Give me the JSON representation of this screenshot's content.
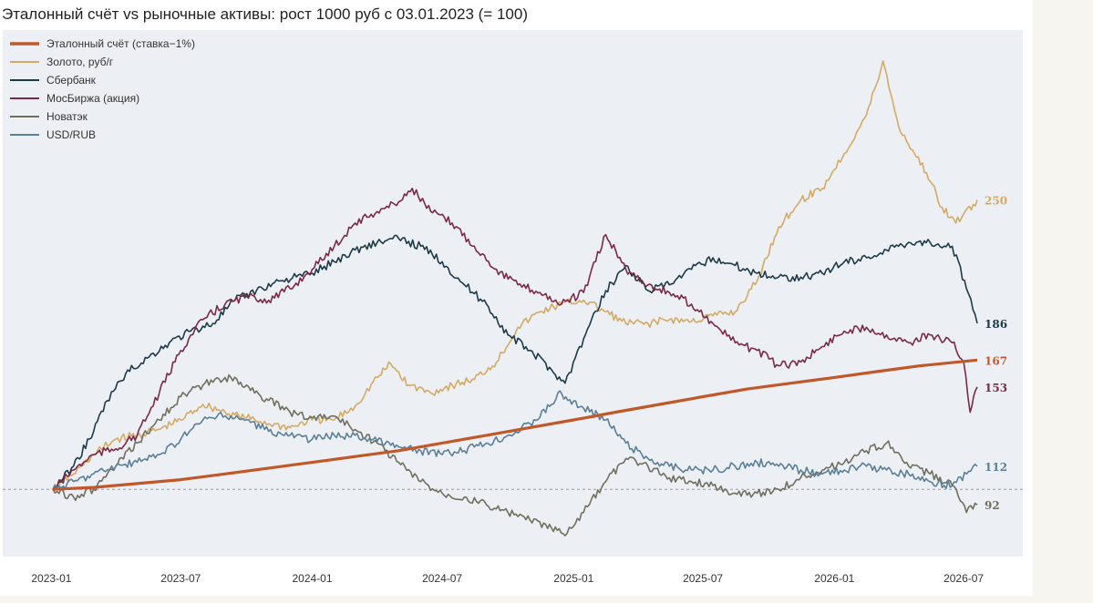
{
  "chart_data": {
    "type": "line",
    "title": "Эталонный счёт vs рыночные активы: рост 1000 руб с 03.01.2023 (= 100)",
    "xlabel": "",
    "ylabel": "",
    "x_range": [
      "2023-01-03",
      "2026-07-20"
    ],
    "x_ticks": [
      "2023-01",
      "2023-07",
      "2024-01",
      "2024-07",
      "2025-01",
      "2025-07",
      "2026-01",
      "2026-07"
    ],
    "ylim": [
      68,
      330
    ],
    "reference_line": 100,
    "grid": false,
    "legend_position": "top-left",
    "series": [
      {
        "name": "Эталонный счёт (ставка−1%)",
        "color": "#c0582a",
        "end_label": "167",
        "points": [
          [
            "2023-01-03",
            100
          ],
          [
            "2023-03-01",
            101
          ],
          [
            "2023-05-01",
            103
          ],
          [
            "2023-07-01",
            105
          ],
          [
            "2023-09-01",
            108
          ],
          [
            "2023-11-01",
            111
          ],
          [
            "2024-01-01",
            114
          ],
          [
            "2024-03-01",
            117
          ],
          [
            "2024-05-01",
            120
          ],
          [
            "2024-07-01",
            124
          ],
          [
            "2024-09-01",
            128
          ],
          [
            "2024-11-01",
            132
          ],
          [
            "2025-01-01",
            136
          ],
          [
            "2025-03-01",
            140
          ],
          [
            "2025-05-01",
            144
          ],
          [
            "2025-07-01",
            148
          ],
          [
            "2025-09-01",
            152
          ],
          [
            "2025-11-01",
            155
          ],
          [
            "2026-01-01",
            158
          ],
          [
            "2026-03-01",
            161
          ],
          [
            "2026-05-01",
            164
          ],
          [
            "2026-07-20",
            167
          ]
        ]
      },
      {
        "name": "Золото, руб/г",
        "color": "#d4aa64",
        "end_label": "250",
        "points": [
          [
            "2023-01-03",
            100
          ],
          [
            "2023-02-01",
            108
          ],
          [
            "2023-03-01",
            118
          ],
          [
            "2023-04-01",
            126
          ],
          [
            "2023-05-01",
            128
          ],
          [
            "2023-06-01",
            131
          ],
          [
            "2023-07-01",
            136
          ],
          [
            "2023-08-01",
            144
          ],
          [
            "2023-09-01",
            140
          ],
          [
            "2023-10-01",
            137
          ],
          [
            "2023-11-01",
            134
          ],
          [
            "2023-12-01",
            132
          ],
          [
            "2024-01-01",
            136
          ],
          [
            "2024-02-01",
            136
          ],
          [
            "2024-03-01",
            143
          ],
          [
            "2024-04-01",
            158
          ],
          [
            "2024-04-20",
            165
          ],
          [
            "2024-05-15",
            154
          ],
          [
            "2024-06-15",
            150
          ],
          [
            "2024-07-15",
            154
          ],
          [
            "2024-08-15",
            157
          ],
          [
            "2024-09-15",
            166
          ],
          [
            "2024-10-15",
            184
          ],
          [
            "2024-11-15",
            192
          ],
          [
            "2024-12-15",
            196
          ],
          [
            "2025-01-15",
            198
          ],
          [
            "2025-02-15",
            192
          ],
          [
            "2025-03-15",
            186
          ],
          [
            "2025-04-15",
            186
          ],
          [
            "2025-05-15",
            188
          ],
          [
            "2025-06-15",
            187
          ],
          [
            "2025-07-15",
            190
          ],
          [
            "2025-08-15",
            192
          ],
          [
            "2025-09-15",
            208
          ],
          [
            "2025-10-15",
            236
          ],
          [
            "2025-11-15",
            250
          ],
          [
            "2025-12-15",
            256
          ],
          [
            "2026-01-15",
            274
          ],
          [
            "2026-02-15",
            294
          ],
          [
            "2026-03-01",
            310
          ],
          [
            "2026-03-10",
            322
          ],
          [
            "2026-04-01",
            288
          ],
          [
            "2026-04-20",
            276
          ],
          [
            "2026-05-10",
            264
          ],
          [
            "2026-06-01",
            246
          ],
          [
            "2026-06-20",
            238
          ],
          [
            "2026-07-20",
            250
          ]
        ]
      },
      {
        "name": "Сбербанк",
        "color": "#1e3a47",
        "end_label": "186",
        "points": [
          [
            "2023-01-03",
            100
          ],
          [
            "2023-02-01",
            112
          ],
          [
            "2023-03-01",
            130
          ],
          [
            "2023-03-20",
            146
          ],
          [
            "2023-04-15",
            160
          ],
          [
            "2023-05-15",
            168
          ],
          [
            "2023-06-15",
            176
          ],
          [
            "2023-07-15",
            182
          ],
          [
            "2023-08-15",
            186
          ],
          [
            "2023-09-15",
            198
          ],
          [
            "2023-10-15",
            203
          ],
          [
            "2023-11-15",
            208
          ],
          [
            "2024-01-01",
            212
          ],
          [
            "2024-02-01",
            218
          ],
          [
            "2024-03-01",
            224
          ],
          [
            "2024-04-01",
            228
          ],
          [
            "2024-05-01",
            230
          ],
          [
            "2024-06-01",
            226
          ],
          [
            "2024-07-01",
            218
          ],
          [
            "2024-08-01",
            206
          ],
          [
            "2024-09-01",
            196
          ],
          [
            "2024-10-01",
            180
          ],
          [
            "2024-11-01",
            172
          ],
          [
            "2024-12-01",
            162
          ],
          [
            "2024-12-20",
            155
          ],
          [
            "2025-01-15",
            178
          ],
          [
            "2025-02-15",
            203
          ],
          [
            "2025-03-15",
            216
          ],
          [
            "2025-04-15",
            203
          ],
          [
            "2025-05-15",
            206
          ],
          [
            "2025-06-15",
            214
          ],
          [
            "2025-07-15",
            220
          ],
          [
            "2025-08-15",
            216
          ],
          [
            "2025-09-15",
            212
          ],
          [
            "2025-10-15",
            210
          ],
          [
            "2025-11-15",
            210
          ],
          [
            "2025-12-15",
            212
          ],
          [
            "2026-01-15",
            218
          ],
          [
            "2026-02-15",
            220
          ],
          [
            "2026-03-15",
            224
          ],
          [
            "2026-04-15",
            228
          ],
          [
            "2026-05-15",
            228
          ],
          [
            "2026-06-15",
            226
          ],
          [
            "2026-07-05",
            204
          ],
          [
            "2026-07-20",
            186
          ]
        ]
      },
      {
        "name": "МосБиржа (акция)",
        "color": "#7a2a45",
        "end_label": "153",
        "points": [
          [
            "2023-01-03",
            100
          ],
          [
            "2023-02-01",
            110
          ],
          [
            "2023-03-01",
            118
          ],
          [
            "2023-04-01",
            121
          ],
          [
            "2023-05-01",
            128
          ],
          [
            "2023-06-01",
            150
          ],
          [
            "2023-07-01",
            172
          ],
          [
            "2023-08-01",
            188
          ],
          [
            "2023-09-01",
            196
          ],
          [
            "2023-10-01",
            200
          ],
          [
            "2023-11-01",
            198
          ],
          [
            "2023-12-01",
            204
          ],
          [
            "2024-01-01",
            214
          ],
          [
            "2024-02-01",
            226
          ],
          [
            "2024-03-01",
            238
          ],
          [
            "2024-04-01",
            244
          ],
          [
            "2024-05-01",
            249
          ],
          [
            "2024-05-20",
            256
          ],
          [
            "2024-06-15",
            244
          ],
          [
            "2024-07-15",
            238
          ],
          [
            "2024-08-15",
            226
          ],
          [
            "2024-09-15",
            214
          ],
          [
            "2024-10-15",
            206
          ],
          [
            "2024-11-15",
            202
          ],
          [
            "2024-12-15",
            196
          ],
          [
            "2025-01-15",
            202
          ],
          [
            "2025-02-15",
            232
          ],
          [
            "2025-03-15",
            214
          ],
          [
            "2025-04-15",
            206
          ],
          [
            "2025-05-15",
            202
          ],
          [
            "2025-06-15",
            196
          ],
          [
            "2025-07-15",
            186
          ],
          [
            "2025-08-15",
            176
          ],
          [
            "2025-09-15",
            172
          ],
          [
            "2025-10-15",
            164
          ],
          [
            "2025-11-15",
            166
          ],
          [
            "2025-12-15",
            174
          ],
          [
            "2026-01-15",
            182
          ],
          [
            "2026-02-15",
            184
          ],
          [
            "2026-03-15",
            180
          ],
          [
            "2026-04-15",
            176
          ],
          [
            "2026-05-15",
            180
          ],
          [
            "2026-06-15",
            176
          ],
          [
            "2026-07-01",
            166
          ],
          [
            "2026-07-10",
            140
          ],
          [
            "2026-07-20",
            153
          ]
        ]
      },
      {
        "name": "Новатэк",
        "color": "#6f6f5e",
        "end_label": "92",
        "points": [
          [
            "2023-01-03",
            100
          ],
          [
            "2023-02-01",
            96
          ],
          [
            "2023-03-01",
            100
          ],
          [
            "2023-04-01",
            112
          ],
          [
            "2023-05-01",
            124
          ],
          [
            "2023-06-01",
            136
          ],
          [
            "2023-07-01",
            148
          ],
          [
            "2023-08-01",
            154
          ],
          [
            "2023-09-01",
            158
          ],
          [
            "2023-10-01",
            154
          ],
          [
            "2023-11-01",
            146
          ],
          [
            "2023-12-01",
            140
          ],
          [
            "2024-01-01",
            137
          ],
          [
            "2024-02-01",
            138
          ],
          [
            "2024-03-01",
            131
          ],
          [
            "2024-04-01",
            124
          ],
          [
            "2024-05-01",
            114
          ],
          [
            "2024-06-01",
            104
          ],
          [
            "2024-07-01",
            98
          ],
          [
            "2024-08-01",
            96
          ],
          [
            "2024-09-01",
            92
          ],
          [
            "2024-10-01",
            88
          ],
          [
            "2024-11-01",
            84
          ],
          [
            "2024-12-01",
            80
          ],
          [
            "2024-12-20",
            76
          ],
          [
            "2025-01-15",
            88
          ],
          [
            "2025-02-15",
            104
          ],
          [
            "2025-03-15",
            116
          ],
          [
            "2025-04-15",
            112
          ],
          [
            "2025-05-15",
            106
          ],
          [
            "2025-06-15",
            104
          ],
          [
            "2025-07-15",
            102
          ],
          [
            "2025-08-15",
            98
          ],
          [
            "2025-09-15",
            98
          ],
          [
            "2025-10-15",
            100
          ],
          [
            "2025-11-15",
            106
          ],
          [
            "2025-12-15",
            110
          ],
          [
            "2026-01-15",
            114
          ],
          [
            "2026-02-15",
            120
          ],
          [
            "2026-03-15",
            124
          ],
          [
            "2026-04-15",
            112
          ],
          [
            "2026-05-15",
            108
          ],
          [
            "2026-06-15",
            102
          ],
          [
            "2026-07-05",
            88
          ],
          [
            "2026-07-20",
            92
          ]
        ]
      },
      {
        "name": "USD/RUB",
        "color": "#5b7f95",
        "end_label": "112",
        "points": [
          [
            "2023-01-03",
            100
          ],
          [
            "2023-02-01",
            104
          ],
          [
            "2023-03-01",
            108
          ],
          [
            "2023-04-01",
            112
          ],
          [
            "2023-05-01",
            114
          ],
          [
            "2023-06-01",
            118
          ],
          [
            "2023-07-01",
            126
          ],
          [
            "2023-08-01",
            136
          ],
          [
            "2023-09-01",
            138
          ],
          [
            "2023-10-01",
            136
          ],
          [
            "2023-11-01",
            130
          ],
          [
            "2023-12-01",
            128
          ],
          [
            "2024-01-01",
            126
          ],
          [
            "2024-02-01",
            128
          ],
          [
            "2024-03-01",
            128
          ],
          [
            "2024-04-01",
            125
          ],
          [
            "2024-05-01",
            122
          ],
          [
            "2024-06-01",
            120
          ],
          [
            "2024-07-01",
            118
          ],
          [
            "2024-08-01",
            120
          ],
          [
            "2024-09-01",
            124
          ],
          [
            "2024-10-01",
            128
          ],
          [
            "2024-11-01",
            134
          ],
          [
            "2024-12-01",
            144
          ],
          [
            "2024-12-10",
            150
          ],
          [
            "2025-01-15",
            142
          ],
          [
            "2025-02-15",
            136
          ],
          [
            "2025-03-15",
            124
          ],
          [
            "2025-04-15",
            116
          ],
          [
            "2025-05-15",
            112
          ],
          [
            "2025-06-15",
            110
          ],
          [
            "2025-07-15",
            110
          ],
          [
            "2025-08-15",
            112
          ],
          [
            "2025-09-15",
            114
          ],
          [
            "2025-10-15",
            112
          ],
          [
            "2025-11-15",
            110
          ],
          [
            "2025-12-15",
            108
          ],
          [
            "2026-01-15",
            110
          ],
          [
            "2026-02-15",
            112
          ],
          [
            "2026-03-15",
            110
          ],
          [
            "2026-04-15",
            108
          ],
          [
            "2026-05-15",
            104
          ],
          [
            "2026-06-15",
            102
          ],
          [
            "2026-07-05",
            108
          ],
          [
            "2026-07-20",
            112
          ]
        ]
      }
    ]
  }
}
